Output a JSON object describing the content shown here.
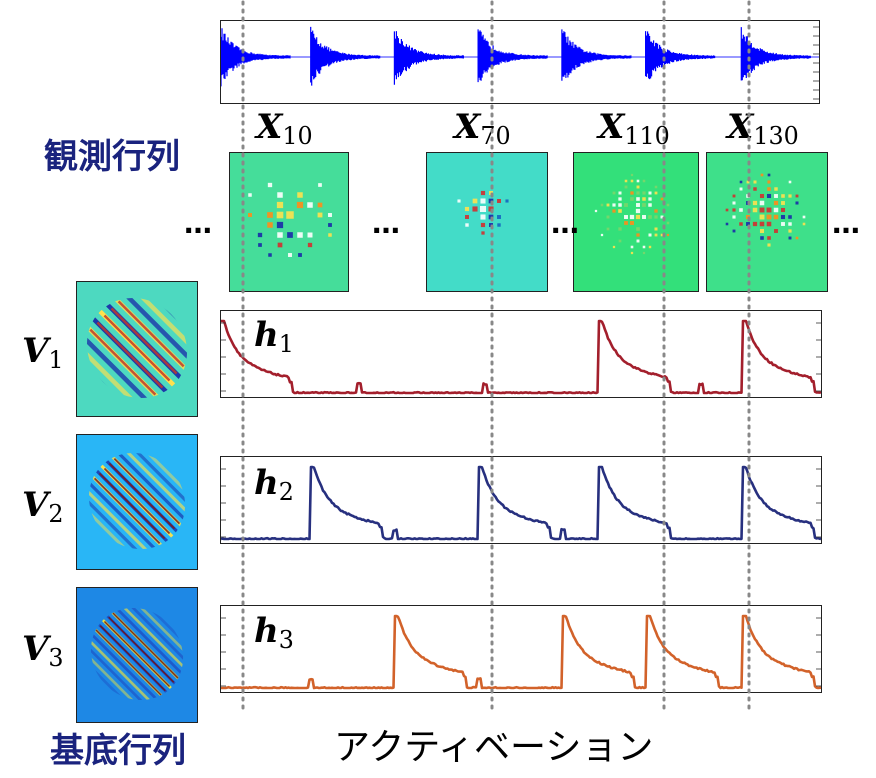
{
  "labels": {
    "observation_matrix": "観測行列",
    "basis_matrix": "基底行列",
    "activation": "アクティベーション",
    "ellipsis": "…"
  },
  "observations": [
    {
      "name": "X",
      "sub": "10"
    },
    {
      "name": "X",
      "sub": "70"
    },
    {
      "name": "X",
      "sub": "110"
    },
    {
      "name": "X",
      "sub": "130"
    }
  ],
  "bases": [
    {
      "name": "V",
      "sub": "1",
      "bg": "#4dd9c0"
    },
    {
      "name": "V",
      "sub": "2",
      "bg": "#29b6f6"
    },
    {
      "name": "V",
      "sub": "3",
      "bg": "#1e88e5"
    }
  ],
  "activations": [
    {
      "name": "h",
      "sub": "1",
      "color": "#a31f2c",
      "onsets": [
        0.0,
        0.63,
        0.87
      ],
      "small": [
        0.23,
        0.44,
        0.8
      ]
    },
    {
      "name": "h",
      "sub": "2",
      "color": "#27307f",
      "onsets": [
        0.15,
        0.43,
        0.63,
        0.87
      ],
      "small": [
        0.29,
        0.57
      ]
    },
    {
      "name": "h",
      "sub": "3",
      "color": "#d2622a",
      "onsets": [
        0.29,
        0.57,
        0.71,
        0.87
      ],
      "small": [
        0.15,
        0.43
      ]
    }
  ],
  "waveform": {
    "color": "#0000ff",
    "onsets": [
      0.0,
      0.15,
      0.29,
      0.43,
      0.57,
      0.71,
      0.87
    ]
  },
  "colors": {
    "guide_dots": "#888888"
  }
}
